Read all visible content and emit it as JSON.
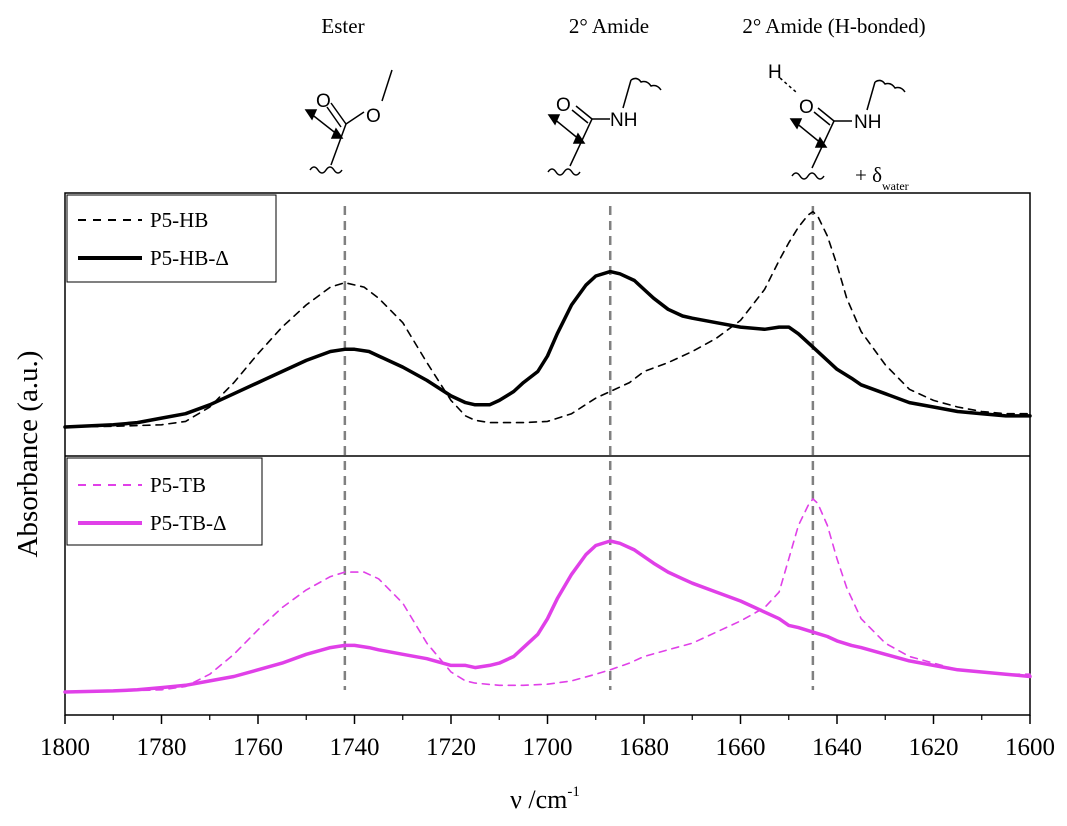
{
  "chart_data": {
    "type": "line",
    "xlabel": "ν /cm",
    "xlabel_sup": "-1",
    "ylabel": "Absorbance (a.u.)",
    "xlim": [
      1800,
      1600
    ],
    "x_ticks": [
      "1800",
      "1780",
      "1760",
      "1740",
      "1720",
      "1700",
      "1680",
      "1660",
      "1640",
      "1620",
      "1600"
    ],
    "reference_lines": [
      1742,
      1687,
      1645
    ],
    "reference_line_color": "#808080",
    "annotations": {
      "ester": "Ester",
      "amide": "2° Amide",
      "amide_hb": "2° Amide (H-bonded)",
      "delta_prefix": "+ δ",
      "delta_sub": "water",
      "atom_o1": "O",
      "atom_o2": "O",
      "atom_o3": "O",
      "atom_o4": "O",
      "atom_nh1": "NH",
      "atom_nh2": "NH",
      "atom_h": "H"
    },
    "panels": [
      {
        "series": [
          {
            "name": "P5-HB",
            "color": "#000000",
            "dash": "dashed",
            "x": [
              1800,
              1790,
              1780,
              1775,
              1770,
              1765,
              1760,
              1755,
              1750,
              1745,
              1742,
              1738,
              1735,
              1730,
              1725,
              1720,
              1717,
              1715,
              1712,
              1710,
              1705,
              1700,
              1695,
              1690,
              1687,
              1683,
              1680,
              1675,
              1670,
              1665,
              1660,
              1655,
              1652,
              1650,
              1648,
              1646,
              1645,
              1644,
              1642,
              1640,
              1638,
              1635,
              1630,
              1625,
              1620,
              1615,
              1610,
              1605,
              1600
            ],
            "y": [
              0.0,
              0.003,
              0.01,
              0.025,
              0.09,
              0.2,
              0.33,
              0.45,
              0.55,
              0.63,
              0.65,
              0.63,
              0.58,
              0.47,
              0.29,
              0.12,
              0.05,
              0.03,
              0.02,
              0.02,
              0.02,
              0.025,
              0.06,
              0.13,
              0.16,
              0.2,
              0.25,
              0.29,
              0.34,
              0.4,
              0.48,
              0.62,
              0.75,
              0.83,
              0.9,
              0.955,
              0.97,
              0.95,
              0.86,
              0.73,
              0.58,
              0.43,
              0.28,
              0.17,
              0.12,
              0.09,
              0.07,
              0.06,
              0.06
            ]
          },
          {
            "name": "P5-HB-Δ",
            "color": "#000000",
            "dash": "solid",
            "x": [
              1800,
              1790,
              1785,
              1780,
              1775,
              1770,
              1765,
              1760,
              1755,
              1750,
              1745,
              1742,
              1740,
              1737,
              1735,
              1730,
              1725,
              1720,
              1717,
              1715,
              1712,
              1710,
              1707,
              1705,
              1702,
              1700,
              1698,
              1695,
              1692,
              1690,
              1687,
              1685,
              1682,
              1680,
              1678,
              1675,
              1672,
              1670,
              1665,
              1660,
              1655,
              1652,
              1650,
              1648,
              1645,
              1642,
              1640,
              1637,
              1635,
              1630,
              1625,
              1620,
              1615,
              1610,
              1605,
              1600
            ],
            "y": [
              0.0,
              0.01,
              0.02,
              0.04,
              0.06,
              0.1,
              0.15,
              0.2,
              0.25,
              0.3,
              0.34,
              0.35,
              0.35,
              0.34,
              0.32,
              0.27,
              0.21,
              0.14,
              0.11,
              0.1,
              0.1,
              0.12,
              0.16,
              0.2,
              0.25,
              0.32,
              0.42,
              0.55,
              0.64,
              0.68,
              0.7,
              0.69,
              0.66,
              0.62,
              0.58,
              0.53,
              0.5,
              0.49,
              0.47,
              0.45,
              0.44,
              0.45,
              0.45,
              0.42,
              0.36,
              0.3,
              0.26,
              0.22,
              0.19,
              0.15,
              0.11,
              0.09,
              0.07,
              0.06,
              0.05,
              0.05
            ]
          }
        ]
      },
      {
        "series": [
          {
            "name": "P5-TB",
            "color": "#e040e8",
            "dash": "dashed",
            "x": [
              1800,
              1790,
              1780,
              1775,
              1770,
              1765,
              1760,
              1755,
              1750,
              1745,
              1742,
              1738,
              1735,
              1730,
              1725,
              1720,
              1717,
              1715,
              1710,
              1705,
              1700,
              1695,
              1690,
              1687,
              1683,
              1680,
              1675,
              1670,
              1665,
              1660,
              1655,
              1652,
              1650,
              1648,
              1646,
              1645,
              1644,
              1642,
              1640,
              1638,
              1635,
              1630,
              1625,
              1620,
              1615,
              1610,
              1605,
              1600
            ],
            "y": [
              0.0,
              0.003,
              0.01,
              0.025,
              0.08,
              0.17,
              0.28,
              0.38,
              0.46,
              0.52,
              0.54,
              0.54,
              0.51,
              0.4,
              0.22,
              0.09,
              0.05,
              0.04,
              0.03,
              0.03,
              0.035,
              0.05,
              0.08,
              0.1,
              0.13,
              0.16,
              0.19,
              0.22,
              0.27,
              0.32,
              0.38,
              0.45,
              0.6,
              0.75,
              0.84,
              0.87,
              0.85,
              0.75,
              0.6,
              0.47,
              0.33,
              0.22,
              0.16,
              0.13,
              0.1,
              0.09,
              0.08,
              0.08
            ]
          },
          {
            "name": "P5-TB-Δ",
            "color": "#e040e8",
            "dash": "solid",
            "x": [
              1800,
              1790,
              1785,
              1780,
              1775,
              1770,
              1765,
              1760,
              1755,
              1750,
              1745,
              1742,
              1740,
              1737,
              1735,
              1730,
              1725,
              1720,
              1717,
              1715,
              1712,
              1710,
              1707,
              1705,
              1702,
              1700,
              1698,
              1695,
              1692,
              1690,
              1687,
              1685,
              1682,
              1680,
              1678,
              1675,
              1672,
              1670,
              1665,
              1660,
              1657,
              1655,
              1652,
              1650,
              1648,
              1645,
              1642,
              1640,
              1637,
              1635,
              1630,
              1625,
              1620,
              1615,
              1610,
              1605,
              1600
            ],
            "y": [
              0.0,
              0.005,
              0.01,
              0.02,
              0.03,
              0.05,
              0.07,
              0.1,
              0.13,
              0.17,
              0.2,
              0.21,
              0.21,
              0.2,
              0.19,
              0.17,
              0.15,
              0.12,
              0.12,
              0.11,
              0.12,
              0.13,
              0.16,
              0.2,
              0.26,
              0.33,
              0.42,
              0.53,
              0.62,
              0.66,
              0.68,
              0.67,
              0.64,
              0.61,
              0.58,
              0.54,
              0.51,
              0.49,
              0.45,
              0.41,
              0.38,
              0.36,
              0.33,
              0.3,
              0.29,
              0.27,
              0.25,
              0.23,
              0.21,
              0.2,
              0.17,
              0.14,
              0.12,
              0.1,
              0.09,
              0.08,
              0.07
            ]
          }
        ]
      }
    ]
  }
}
